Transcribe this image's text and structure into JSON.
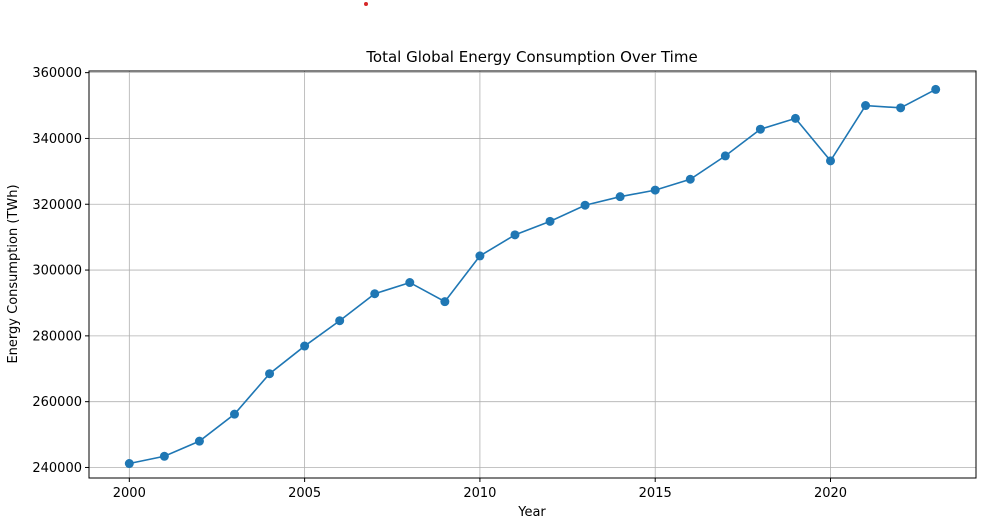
{
  "chart_data": {
    "type": "line",
    "title": "Total Global Energy Consumption Over Time",
    "xlabel": "Year",
    "ylabel": "Energy Consumption (TWh)",
    "xlim": [
      1998.85,
      2024.15
    ],
    "ylim": [
      236800,
      360500
    ],
    "xticks": [
      2000,
      2005,
      2010,
      2015,
      2020
    ],
    "yticks": [
      240000,
      260000,
      280000,
      300000,
      320000,
      340000,
      360000
    ],
    "grid": true,
    "series": [
      {
        "color": "#1f77b4",
        "marker": "circle",
        "x": [
          2000,
          2001,
          2002,
          2003,
          2004,
          2005,
          2006,
          2007,
          2008,
          2009,
          2010,
          2011,
          2012,
          2013,
          2014,
          2015,
          2016,
          2017,
          2018,
          2019,
          2020,
          2021,
          2022,
          2023
        ],
        "y": [
          241200,
          243400,
          248000,
          256200,
          268500,
          276900,
          284600,
          292800,
          296200,
          290400,
          304300,
          310700,
          314800,
          319700,
          322300,
          324300,
          327600,
          334700,
          342800,
          346100,
          333200,
          350000,
          349300,
          354900
        ]
      }
    ],
    "annotation_marker_color": "#d62728"
  }
}
